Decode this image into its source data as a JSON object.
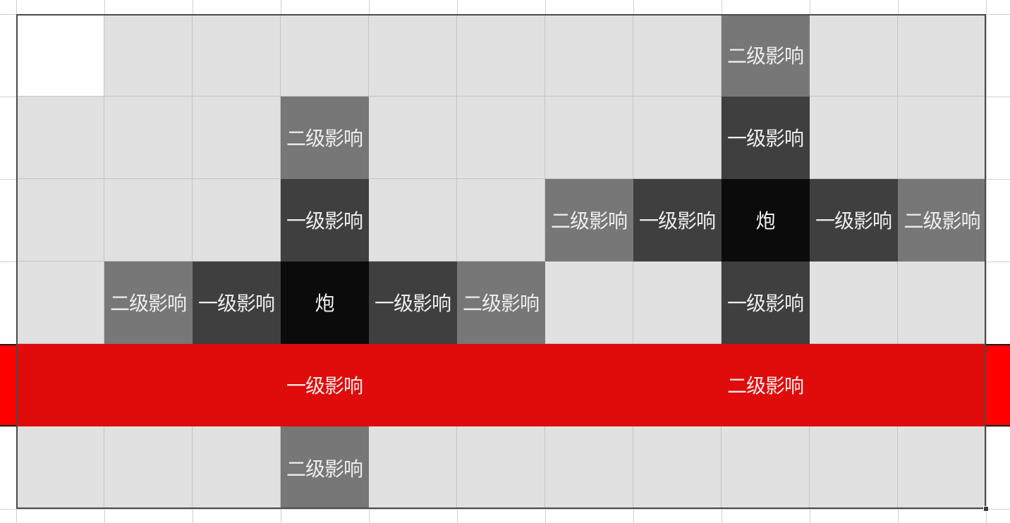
{
  "grid": {
    "rows": [
      [
        {
          "kind": "blank",
          "label": ""
        },
        {
          "kind": "empty",
          "label": ""
        },
        {
          "kind": "empty",
          "label": ""
        },
        {
          "kind": "empty",
          "label": ""
        },
        {
          "kind": "empty",
          "label": ""
        },
        {
          "kind": "empty",
          "label": ""
        },
        {
          "kind": "empty",
          "label": ""
        },
        {
          "kind": "empty",
          "label": ""
        },
        {
          "kind": "lvl2",
          "label": "二级影响"
        },
        {
          "kind": "empty",
          "label": ""
        },
        {
          "kind": "empty",
          "label": ""
        }
      ],
      [
        {
          "kind": "empty",
          "label": ""
        },
        {
          "kind": "empty",
          "label": ""
        },
        {
          "kind": "empty",
          "label": ""
        },
        {
          "kind": "lvl2",
          "label": "二级影响"
        },
        {
          "kind": "empty",
          "label": ""
        },
        {
          "kind": "empty",
          "label": ""
        },
        {
          "kind": "empty",
          "label": ""
        },
        {
          "kind": "empty",
          "label": ""
        },
        {
          "kind": "lvl1",
          "label": "一级影响"
        },
        {
          "kind": "empty",
          "label": ""
        },
        {
          "kind": "empty",
          "label": ""
        }
      ],
      [
        {
          "kind": "empty",
          "label": ""
        },
        {
          "kind": "empty",
          "label": ""
        },
        {
          "kind": "empty",
          "label": ""
        },
        {
          "kind": "lvl1",
          "label": "一级影响"
        },
        {
          "kind": "empty",
          "label": ""
        },
        {
          "kind": "empty",
          "label": ""
        },
        {
          "kind": "lvl2",
          "label": "二级影响"
        },
        {
          "kind": "lvl1",
          "label": "一级影响"
        },
        {
          "kind": "cannon",
          "label": "炮"
        },
        {
          "kind": "lvl1",
          "label": "一级影响"
        },
        {
          "kind": "lvl2",
          "label": "二级影响"
        }
      ],
      [
        {
          "kind": "empty",
          "label": ""
        },
        {
          "kind": "lvl2",
          "label": "二级影响"
        },
        {
          "kind": "lvl1",
          "label": "一级影响"
        },
        {
          "kind": "cannon",
          "label": "炮"
        },
        {
          "kind": "lvl1",
          "label": "一级影响"
        },
        {
          "kind": "lvl2",
          "label": "二级影响"
        },
        {
          "kind": "empty",
          "label": ""
        },
        {
          "kind": "empty",
          "label": ""
        },
        {
          "kind": "lvl1",
          "label": "一级影响"
        },
        {
          "kind": "empty",
          "label": ""
        },
        {
          "kind": "empty",
          "label": ""
        }
      ],
      [
        {
          "kind": "red",
          "label": ""
        },
        {
          "kind": "red",
          "label": ""
        },
        {
          "kind": "red",
          "label": ""
        },
        {
          "kind": "red",
          "label": "一级影响"
        },
        {
          "kind": "red",
          "label": ""
        },
        {
          "kind": "red",
          "label": ""
        },
        {
          "kind": "red",
          "label": ""
        },
        {
          "kind": "red",
          "label": ""
        },
        {
          "kind": "red",
          "label": "二级影响"
        },
        {
          "kind": "red",
          "label": ""
        },
        {
          "kind": "red",
          "label": ""
        }
      ],
      [
        {
          "kind": "empty",
          "label": ""
        },
        {
          "kind": "empty",
          "label": ""
        },
        {
          "kind": "empty",
          "label": ""
        },
        {
          "kind": "lvl2",
          "label": "二级影响"
        },
        {
          "kind": "empty",
          "label": ""
        },
        {
          "kind": "empty",
          "label": ""
        },
        {
          "kind": "empty",
          "label": ""
        },
        {
          "kind": "empty",
          "label": ""
        },
        {
          "kind": "empty",
          "label": ""
        },
        {
          "kind": "empty",
          "label": ""
        },
        {
          "kind": "empty",
          "label": ""
        }
      ]
    ]
  },
  "colors": {
    "empty": "#e1e1e1",
    "blank": "#ffffff",
    "lvl2": "#777777",
    "lvl1": "#3f3f3f",
    "cannon": "#0b0b0b",
    "red_row": "#e00b0b",
    "red_band": "#fe0000"
  }
}
